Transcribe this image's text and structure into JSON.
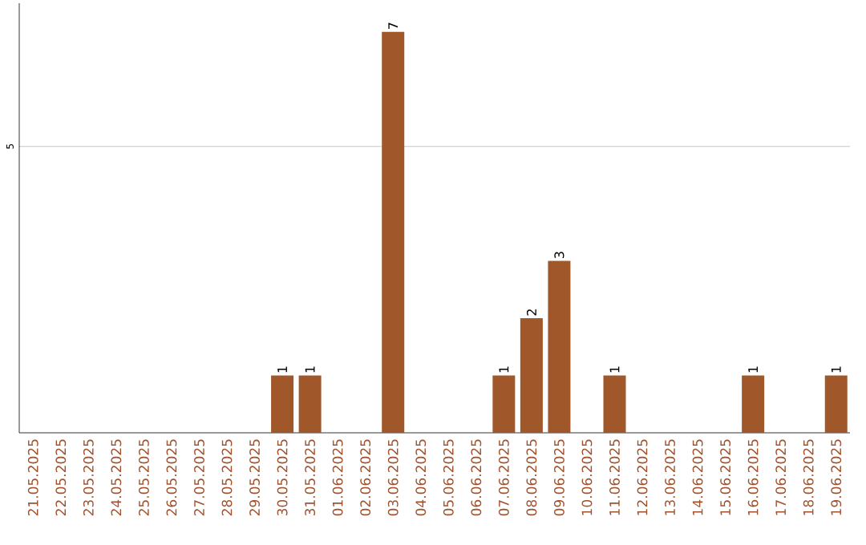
{
  "chart_data": {
    "type": "bar",
    "categories": [
      "21.05.2025",
      "22.05.2025",
      "23.05.2025",
      "24.05.2025",
      "25.05.2025",
      "26.05.2025",
      "27.05.2025",
      "28.05.2025",
      "29.05.2025",
      "30.05.2025",
      "31.05.2025",
      "01.06.2025",
      "02.06.2025",
      "03.06.2025",
      "04.06.2025",
      "05.06.2025",
      "06.06.2025",
      "07.06.2025",
      "08.06.2025",
      "09.06.2025",
      "10.06.2025",
      "11.06.2025",
      "12.06.2025",
      "13.06.2025",
      "14.06.2025",
      "15.06.2025",
      "16.06.2025",
      "17.06.2025",
      "18.06.2025",
      "19.06.2025"
    ],
    "values": [
      0,
      0,
      0,
      0,
      0,
      0,
      0,
      0,
      0,
      1,
      1,
      0,
      0,
      7,
      0,
      0,
      0,
      1,
      2,
      3,
      0,
      1,
      0,
      0,
      0,
      0,
      1,
      0,
      0,
      1
    ],
    "value_labels": [
      null,
      null,
      null,
      null,
      null,
      null,
      null,
      null,
      null,
      "1",
      "1",
      null,
      null,
      "7",
      null,
      null,
      null,
      "1",
      "2",
      "3",
      null,
      "1",
      null,
      null,
      null,
      null,
      "1",
      null,
      null,
      "1"
    ],
    "color": "#a0582a",
    "ylim": [
      0,
      7.5
    ],
    "yticks": [
      5
    ],
    "grid": "y"
  }
}
